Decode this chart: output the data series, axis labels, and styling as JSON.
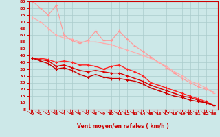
{
  "bg_color": "#cce8e8",
  "grid_color": "#b0d8d8",
  "xlabel": "Vent moyen/en rafales ( km/h )",
  "x_values": [
    0,
    1,
    2,
    3,
    4,
    5,
    6,
    7,
    8,
    9,
    10,
    11,
    12,
    13,
    14,
    15,
    16,
    17,
    18,
    19,
    20,
    21,
    22,
    23
  ],
  "line1_y": [
    85,
    80,
    75,
    82,
    60,
    56,
    54,
    56,
    63,
    56,
    56,
    63,
    57,
    52,
    48,
    44,
    40,
    36,
    32,
    28,
    25,
    22,
    20,
    18
  ],
  "line2_y": [
    73,
    70,
    65,
    60,
    58,
    57,
    55,
    55,
    55,
    54,
    53,
    51,
    49,
    47,
    45,
    43,
    40,
    37,
    33,
    30,
    26,
    24,
    21,
    17
  ],
  "line3_y": [
    43,
    43,
    42,
    40,
    41,
    40,
    38,
    38,
    37,
    35,
    37,
    38,
    35,
    33,
    30,
    25,
    23,
    21,
    19,
    17,
    15,
    13,
    11,
    8
  ],
  "line4_y": [
    43,
    42,
    41,
    37,
    38,
    36,
    34,
    33,
    34,
    33,
    32,
    32,
    30,
    28,
    26,
    23,
    21,
    19,
    17,
    15,
    14,
    12,
    10,
    8
  ],
  "line5_y": [
    43,
    41,
    39,
    35,
    36,
    34,
    31,
    29,
    31,
    29,
    28,
    28,
    27,
    26,
    24,
    21,
    19,
    17,
    15,
    14,
    12,
    11,
    10,
    8
  ],
  "line1_color": "#ff9999",
  "line2_color": "#ffaaaa",
  "line3_color": "#ff2222",
  "line4_color": "#dd0000",
  "line5_color": "#cc0000",
  "tick_color": "#cc0000",
  "spine_color": "#cc0000",
  "arrow_color": "#cc0000",
  "ylim_min": 5,
  "ylim_max": 85,
  "yticks": [
    5,
    10,
    15,
    20,
    25,
    30,
    35,
    40,
    45,
    50,
    55,
    60,
    65,
    70,
    75,
    80,
    85
  ],
  "xticks": [
    0,
    1,
    2,
    3,
    4,
    5,
    6,
    7,
    8,
    9,
    10,
    11,
    12,
    13,
    14,
    15,
    16,
    17,
    18,
    19,
    20,
    21,
    22,
    23
  ]
}
